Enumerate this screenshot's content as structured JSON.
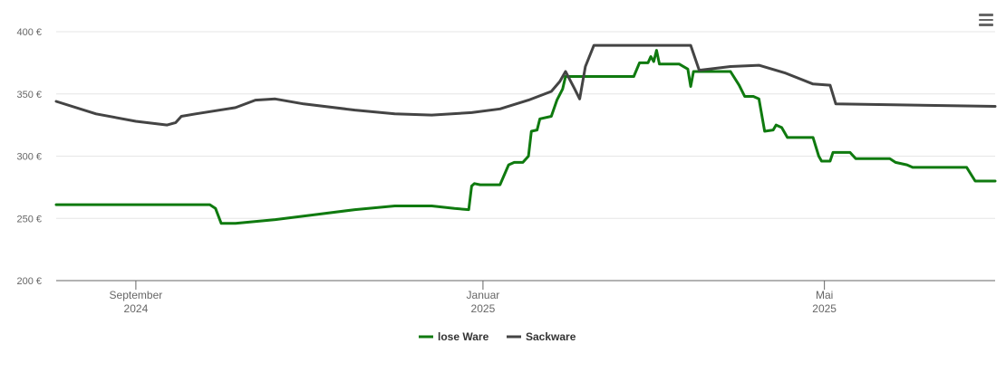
{
  "chart_data": {
    "type": "line",
    "title": "",
    "xlabel": "",
    "ylabel": "",
    "ylim": [
      200,
      400
    ],
    "y_ticks": [
      {
        "value": 200,
        "label": "200 €"
      },
      {
        "value": 250,
        "label": "250 €"
      },
      {
        "value": 300,
        "label": "300 €"
      },
      {
        "value": 350,
        "label": "350 €"
      },
      {
        "value": 400,
        "label": "400 €"
      }
    ],
    "xlim": [
      "2024-08-04",
      "2025-06-30"
    ],
    "x_ticks": [
      {
        "date": "2024-09-01",
        "month": "September",
        "year": "2024"
      },
      {
        "date": "2025-01-01",
        "month": "Januar",
        "year": "2025"
      },
      {
        "date": "2025-05-01",
        "month": "Mai",
        "year": "2025"
      }
    ],
    "grid": true,
    "legend_position": "bottom-center",
    "series": [
      {
        "name": "lose Ware",
        "color": "#0f7a0f",
        "points": [
          [
            "2024-08-04",
            261
          ],
          [
            "2024-09-27",
            261
          ],
          [
            "2024-09-29",
            258
          ],
          [
            "2024-10-01",
            246
          ],
          [
            "2024-10-06",
            246
          ],
          [
            "2024-10-20",
            249
          ],
          [
            "2024-11-03",
            253
          ],
          [
            "2024-11-17",
            257
          ],
          [
            "2024-12-01",
            260
          ],
          [
            "2024-12-14",
            260
          ],
          [
            "2024-12-22",
            258
          ],
          [
            "2024-12-27",
            257
          ],
          [
            "2024-12-28",
            276
          ],
          [
            "2024-12-29",
            278
          ],
          [
            "2024-12-31",
            277
          ],
          [
            "2025-01-07",
            277
          ],
          [
            "2025-01-10",
            293
          ],
          [
            "2025-01-12",
            295
          ],
          [
            "2025-01-15",
            295
          ],
          [
            "2025-01-17",
            300
          ],
          [
            "2025-01-18",
            320
          ],
          [
            "2025-01-20",
            321
          ],
          [
            "2025-01-21",
            330
          ],
          [
            "2025-01-25",
            332
          ],
          [
            "2025-01-27",
            345
          ],
          [
            "2025-01-29",
            354
          ],
          [
            "2025-01-30",
            364
          ],
          [
            "2025-02-23",
            364
          ],
          [
            "2025-02-25",
            375
          ],
          [
            "2025-02-28",
            375
          ],
          [
            "2025-03-01",
            380
          ],
          [
            "2025-03-02",
            376
          ],
          [
            "2025-03-03",
            385
          ],
          [
            "2025-03-04",
            374
          ],
          [
            "2025-03-11",
            374
          ],
          [
            "2025-03-14",
            370
          ],
          [
            "2025-03-15",
            356
          ],
          [
            "2025-03-16",
            368
          ],
          [
            "2025-03-29",
            368
          ],
          [
            "2025-04-01",
            357
          ],
          [
            "2025-04-03",
            348
          ],
          [
            "2025-04-06",
            348
          ],
          [
            "2025-04-08",
            346
          ],
          [
            "2025-04-10",
            320
          ],
          [
            "2025-04-13",
            321
          ],
          [
            "2025-04-14",
            325
          ],
          [
            "2025-04-16",
            323
          ],
          [
            "2025-04-18",
            315
          ],
          [
            "2025-04-27",
            315
          ],
          [
            "2025-04-29",
            300
          ],
          [
            "2025-04-30",
            296
          ],
          [
            "2025-05-03",
            296
          ],
          [
            "2025-05-04",
            303
          ],
          [
            "2025-05-10",
            303
          ],
          [
            "2025-05-12",
            298
          ],
          [
            "2025-05-24",
            298
          ],
          [
            "2025-05-26",
            295
          ],
          [
            "2025-05-30",
            293
          ],
          [
            "2025-06-01",
            291
          ],
          [
            "2025-06-20",
            291
          ],
          [
            "2025-06-23",
            280
          ],
          [
            "2025-06-30",
            280
          ]
        ]
      },
      {
        "name": "Sackware",
        "color": "#444444",
        "points": [
          [
            "2024-08-04",
            344
          ],
          [
            "2024-08-18",
            334
          ],
          [
            "2024-09-01",
            328
          ],
          [
            "2024-09-12",
            325
          ],
          [
            "2024-09-15",
            327
          ],
          [
            "2024-09-17",
            332
          ],
          [
            "2024-09-22",
            334
          ],
          [
            "2024-10-06",
            339
          ],
          [
            "2024-10-13",
            345
          ],
          [
            "2024-10-20",
            346
          ],
          [
            "2024-10-30",
            342
          ],
          [
            "2024-11-17",
            337
          ],
          [
            "2024-12-01",
            334
          ],
          [
            "2024-12-14",
            333
          ],
          [
            "2024-12-28",
            335
          ],
          [
            "2025-01-07",
            338
          ],
          [
            "2025-01-17",
            345
          ],
          [
            "2025-01-25",
            352
          ],
          [
            "2025-01-28",
            360
          ],
          [
            "2025-01-30",
            368
          ],
          [
            "2025-02-02",
            355
          ],
          [
            "2025-02-04",
            346
          ],
          [
            "2025-02-06",
            372
          ],
          [
            "2025-02-09",
            389
          ],
          [
            "2025-03-15",
            389
          ],
          [
            "2025-03-18",
            369
          ],
          [
            "2025-03-29",
            372
          ],
          [
            "2025-04-08",
            373
          ],
          [
            "2025-04-17",
            367
          ],
          [
            "2025-04-27",
            358
          ],
          [
            "2025-05-03",
            357
          ],
          [
            "2025-05-05",
            342
          ],
          [
            "2025-06-30",
            340
          ]
        ]
      }
    ]
  },
  "legend": {
    "items": [
      {
        "label": "lose Ware",
        "color": "#0f7a0f"
      },
      {
        "label": "Sackware",
        "color": "#444444"
      }
    ]
  },
  "toolbar": {
    "menu_icon": "hamburger-menu-icon"
  }
}
